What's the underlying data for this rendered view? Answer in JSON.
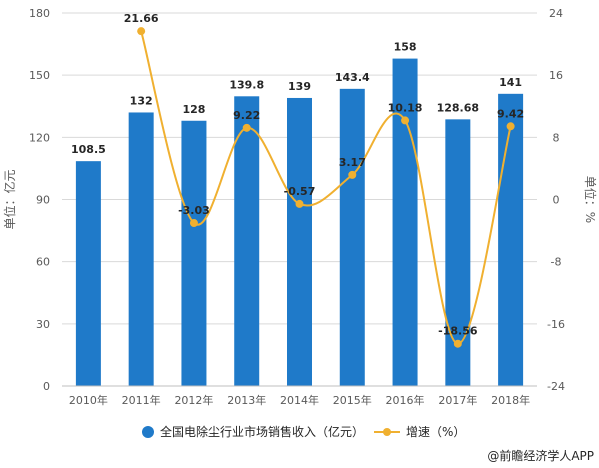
{
  "chart_data": {
    "type": "bar",
    "categories": [
      "2010年",
      "2011年",
      "2012年",
      "2013年",
      "2014年",
      "2015年",
      "2016年",
      "2017年",
      "2018年"
    ],
    "series": [
      {
        "name": "全国电除尘行业市场销售收入（亿元）",
        "type": "bar",
        "axis": "left",
        "color": "#1f7ac9",
        "values": [
          108.5,
          132,
          128,
          139.8,
          139,
          143.4,
          158,
          128.68,
          141
        ],
        "labels": [
          "108.5",
          "132",
          "128",
          "139.8",
          "139",
          "143.4",
          "158",
          "128.68",
          "141"
        ]
      },
      {
        "name": "增速（%）",
        "type": "line",
        "axis": "right",
        "color": "#f0b030",
        "values": [
          null,
          21.66,
          -3.03,
          9.22,
          -0.57,
          3.17,
          10.18,
          -18.56,
          9.42
        ],
        "labels": [
          "",
          "21.66",
          "-3.03",
          "9.22",
          "-0.57",
          "3.17",
          "10.18",
          "-18.56",
          "9.42"
        ]
      }
    ],
    "y_left": {
      "label": "单位：亿元",
      "ylim": [
        0,
        180
      ],
      "ticks": [
        "0",
        "30",
        "60",
        "90",
        "120",
        "150",
        "180"
      ]
    },
    "y_right": {
      "label": "单位：%",
      "ylim": [
        -24,
        24
      ],
      "ticks": [
        "-24",
        "-16",
        "-8",
        "0",
        "8",
        "16",
        "24"
      ]
    },
    "grid": true,
    "legend_position": "bottom"
  },
  "credit": "@前瞻经济学人APP"
}
